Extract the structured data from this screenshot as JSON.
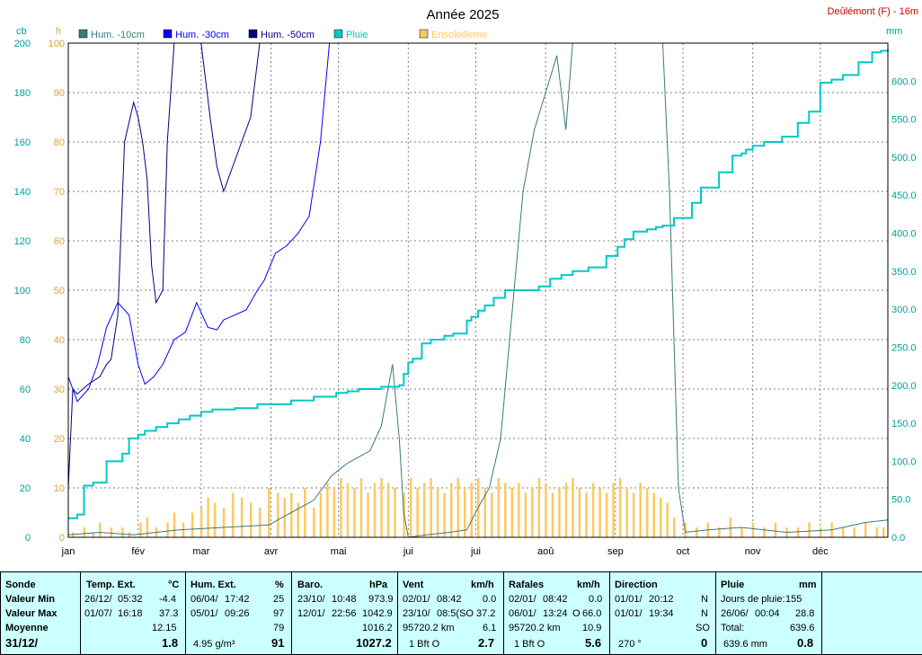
{
  "chart_data": {
    "type": "line",
    "title": "Année 2025",
    "station": "Deûlémont (F) - 16m",
    "left_unit_outer": "cb",
    "left_unit_inner": "h",
    "right_unit": "mm",
    "ylim_cb": [
      0,
      200
    ],
    "yticks_cb": [
      "0",
      "20",
      "40",
      "60",
      "80",
      "100",
      "120",
      "140",
      "160",
      "180",
      "200"
    ],
    "ylim_h": [
      0,
      100
    ],
    "yticks_h": [
      "0",
      "10",
      "20",
      "30",
      "40",
      "50",
      "60",
      "70",
      "80",
      "90",
      "100"
    ],
    "ylim_mm": [
      0,
      650
    ],
    "yticks_mm": [
      "0.0",
      "50.0",
      "100.0",
      "150.0",
      "200.0",
      "250.0",
      "300.0",
      "350.0",
      "400.0",
      "450.0",
      "500.0",
      "550.0",
      "600.0"
    ],
    "x_domain_days": [
      1,
      365
    ],
    "x_labels": [
      {
        "label": "jan",
        "day": 1
      },
      {
        "label": "fév",
        "day": 32
      },
      {
        "label": "mar",
        "day": 60
      },
      {
        "label": "avr",
        "day": 91
      },
      {
        "label": "mai",
        "day": 121
      },
      {
        "label": "jui",
        "day": 152
      },
      {
        "label": "jui",
        "day": 182
      },
      {
        "label": "aoû",
        "day": 213
      },
      {
        "label": "sep",
        "day": 244
      },
      {
        "label": "oct",
        "day": 274
      },
      {
        "label": "nov",
        "day": 305
      },
      {
        "label": "déc",
        "day": 335
      }
    ],
    "grid": true,
    "legend_position": "top",
    "series": [
      {
        "name": "Hum. -10cm",
        "color": "#3a7a78",
        "axis": "cb",
        "x": [
          1,
          15,
          30,
          50,
          70,
          90,
          100,
          110,
          118,
          125,
          135,
          140,
          142,
          145,
          148,
          150,
          152,
          160,
          170,
          178,
          183,
          188,
          193,
          198,
          203,
          208,
          213,
          218,
          222,
          225,
          228,
          230,
          234,
          238,
          245,
          255,
          258,
          262,
          265,
          268,
          272,
          275,
          285,
          300,
          320,
          340,
          355,
          365
        ],
        "y": [
          1,
          2,
          1,
          3,
          4,
          5,
          10,
          15,
          25,
          30,
          35,
          45,
          55,
          70,
          40,
          10,
          0,
          1,
          2,
          3,
          12,
          20,
          40,
          90,
          140,
          165,
          180,
          195,
          165,
          200,
          205,
          205,
          205,
          205,
          205,
          205,
          205,
          205,
          205,
          140,
          20,
          2,
          3,
          4,
          2,
          3,
          6,
          7
        ]
      },
      {
        "name": "Hum. -30cm",
        "color": "#0000ff",
        "axis": "cb",
        "x": [
          1,
          5,
          10,
          14,
          18,
          23,
          28,
          32,
          35,
          39,
          43,
          48,
          53,
          58,
          63,
          67,
          70,
          75,
          80,
          85,
          88,
          93,
          98,
          103,
          108,
          113,
          117,
          121,
          128,
          131,
          133,
          135,
          140,
          145,
          149,
          151,
          154,
          157,
          160,
          163,
          166,
          171,
          174,
          176,
          178,
          181,
          184,
          186,
          189,
          193,
          197,
          201,
          205,
          208,
          212,
          217,
          221,
          225,
          229,
          233,
          238,
          243,
          247,
          251,
          253,
          256,
          259,
          261,
          264,
          267,
          270,
          272,
          275,
          277,
          280,
          283,
          286,
          288,
          291,
          294,
          297,
          300,
          303,
          306,
          309,
          312,
          315,
          318,
          321,
          324,
          327,
          330,
          333,
          336,
          339,
          342,
          345,
          348,
          351,
          354,
          357,
          360,
          363,
          365
        ],
        "y": [
          65,
          55,
          60,
          70,
          85,
          95,
          90,
          70,
          62,
          65,
          70,
          80,
          83,
          95,
          85,
          84,
          88,
          90,
          92,
          100,
          104,
          115,
          118,
          123,
          130,
          160,
          205,
          205,
          205,
          205,
          205,
          205,
          205,
          205,
          205,
          205,
          205,
          205,
          205,
          205,
          205,
          205,
          205,
          205,
          205,
          205,
          205,
          205,
          205,
          205,
          205,
          205,
          205,
          205,
          205,
          205,
          205,
          205,
          205,
          205,
          205,
          205,
          205,
          205,
          205,
          205,
          205,
          205,
          205,
          205,
          205,
          205,
          205,
          205,
          205,
          205,
          205,
          205,
          205,
          205,
          205,
          205,
          205,
          205,
          205,
          205,
          205,
          205,
          205,
          205,
          205,
          205,
          205,
          205,
          205,
          205,
          205,
          205,
          205,
          205,
          205,
          205,
          205,
          205
        ]
      },
      {
        "name": "Hum. -50cm",
        "color": "#000080",
        "axis": "cb",
        "x": [
          1,
          3,
          5,
          10,
          15,
          18,
          20,
          23,
          26,
          30,
          32,
          34,
          36,
          38,
          40,
          43,
          45,
          48,
          52,
          56,
          60,
          64,
          67,
          70,
          74,
          78,
          82,
          86,
          90,
          93,
          95,
          97,
          99,
          101,
          103,
          106,
          110,
          114,
          118,
          121,
          124,
          127,
          131,
          134,
          136,
          138,
          140,
          144,
          148,
          150,
          152,
          154,
          157,
          160,
          163,
          166,
          168,
          170,
          172,
          175,
          178,
          180,
          182,
          184,
          186,
          190,
          194,
          198,
          202,
          206,
          210,
          215,
          220,
          226,
          230,
          236,
          240,
          244,
          246,
          248,
          250,
          252,
          254,
          258,
          262,
          266,
          270,
          273,
          276,
          280,
          284,
          288,
          292,
          296,
          300,
          303,
          305,
          308,
          312,
          316,
          320,
          324,
          328,
          332,
          336,
          340,
          344,
          348,
          352,
          356,
          360,
          365
        ],
        "y": [
          20,
          60,
          58,
          62,
          65,
          70,
          72,
          90,
          160,
          176,
          170,
          160,
          145,
          110,
          95,
          100,
          160,
          200,
          200,
          200,
          200,
          170,
          150,
          140,
          150,
          160,
          170,
          200,
          200,
          200,
          200,
          200,
          200,
          200,
          200,
          200,
          200,
          200,
          200,
          200,
          200,
          200,
          200,
          200,
          200,
          200,
          200,
          200,
          200,
          200,
          200,
          200,
          200,
          200,
          200,
          200,
          200,
          200,
          200,
          200,
          200,
          200,
          200,
          200,
          200,
          200,
          200,
          200,
          200,
          200,
          200,
          200,
          200,
          200,
          200,
          200,
          200,
          200,
          200,
          200,
          200,
          200,
          200,
          200,
          200,
          200,
          200,
          200,
          200,
          200,
          200,
          200,
          200,
          200,
          200,
          200,
          200,
          200,
          200,
          200,
          200,
          200,
          200,
          200,
          200,
          200,
          200,
          200,
          200,
          200,
          200,
          200
        ]
      },
      {
        "name": "Pluie",
        "color": "#00c8c8",
        "axis": "mm",
        "step": true,
        "x": [
          1,
          5,
          8,
          12,
          18,
          25,
          28,
          32,
          35,
          40,
          45,
          50,
          55,
          60,
          65,
          75,
          85,
          100,
          110,
          120,
          125,
          130,
          140,
          148,
          150,
          152,
          154,
          158,
          162,
          168,
          172,
          178,
          180,
          183,
          186,
          190,
          195,
          200,
          210,
          215,
          220,
          225,
          232,
          240,
          245,
          248,
          252,
          258,
          262,
          265,
          270,
          278,
          282,
          290,
          296,
          300,
          302,
          305,
          310,
          318,
          325,
          330,
          335,
          340,
          345,
          352,
          358,
          362,
          365
        ],
        "y": [
          25,
          30,
          68,
          72,
          100,
          110,
          130,
          135,
          140,
          145,
          150,
          155,
          160,
          165,
          168,
          170,
          175,
          180,
          185,
          190,
          192,
          195,
          198,
          200,
          215,
          230,
          235,
          255,
          260,
          265,
          268,
          285,
          290,
          298,
          305,
          315,
          325,
          325,
          330,
          340,
          345,
          350,
          355,
          370,
          382,
          392,
          402,
          405,
          408,
          410,
          420,
          440,
          460,
          480,
          502,
          505,
          510,
          515,
          520,
          527,
          545,
          560,
          598,
          602,
          608,
          625,
          638,
          640,
          642
        ]
      },
      {
        "name": "Ensoleilleme",
        "color": "#ffc860",
        "axis": "h",
        "type": "bar",
        "x": [
          3,
          8,
          12,
          15,
          20,
          25,
          28,
          33,
          36,
          40,
          45,
          48,
          52,
          56,
          60,
          63,
          66,
          70,
          74,
          78,
          82,
          86,
          90,
          94,
          97,
          100,
          103,
          106,
          110,
          113,
          116,
          119,
          122,
          125,
          128,
          131,
          134,
          137,
          140,
          143,
          146,
          150,
          153,
          156,
          159,
          162,
          165,
          168,
          171,
          174,
          177,
          180,
          183,
          186,
          189,
          192,
          195,
          198,
          201,
          204,
          207,
          210,
          213,
          216,
          219,
          222,
          225,
          228,
          231,
          234,
          237,
          240,
          243,
          246,
          249,
          252,
          255,
          258,
          261,
          264,
          267,
          270,
          275,
          280,
          285,
          290,
          295,
          300,
          305,
          310,
          315,
          320,
          325,
          330,
          335,
          340,
          345,
          350,
          355,
          360,
          363
        ],
        "y": [
          1,
          2,
          1,
          3,
          2,
          2,
          1,
          3,
          4,
          2,
          3,
          5,
          3,
          5,
          6,
          8,
          7,
          6,
          9,
          8,
          7,
          6,
          10,
          9,
          8,
          9,
          7,
          10,
          6,
          9,
          11,
          10,
          12,
          11,
          10,
          12,
          9,
          11,
          12,
          11,
          10,
          9,
          12,
          10,
          11,
          12,
          10,
          9,
          11,
          12,
          10,
          11,
          12,
          10,
          9,
          12,
          11,
          10,
          11,
          9,
          10,
          12,
          11,
          9,
          10,
          11,
          12,
          10,
          9,
          11,
          10,
          9,
          11,
          12,
          10,
          9,
          11,
          10,
          9,
          8,
          7,
          4,
          3,
          2,
          3,
          2,
          4,
          2,
          3,
          2,
          3,
          2,
          2,
          3,
          2,
          3,
          2,
          2,
          3,
          2,
          2
        ]
      }
    ]
  },
  "table": {
    "headers": {
      "sonde": "Sonde",
      "temp": {
        "label": "Temp. Ext.",
        "unit": "°C"
      },
      "hum": {
        "label": "Hum. Ext.",
        "unit": "%"
      },
      "baro": {
        "label": "Baro.",
        "unit": "hPa"
      },
      "vent": {
        "label": "Vent",
        "unit": "km/h"
      },
      "rafales": {
        "label": "Rafales",
        "unit": "km/h"
      },
      "direction": {
        "label": "Direction"
      },
      "pluie": {
        "label": "Pluie",
        "unit": "mm"
      }
    },
    "row_labels": {
      "min": "Valeur Min",
      "max": "Valeur Max",
      "moy": "Moyenne",
      "date": "31/12/"
    },
    "temp": {
      "min_date": "26/12/",
      "min_time": "05:32",
      "min": "-4.4",
      "max_date": "01/07/",
      "max_time": "16:18",
      "max": "37.3",
      "moy": "12.15",
      "last": "1.8"
    },
    "hum": {
      "min_date": "06/04/",
      "min_time": "17:42",
      "min": "25",
      "max_date": "05/01/",
      "max_time": "09:26",
      "max": "97",
      "moy": "79",
      "abs": "4.95 g/m³",
      "last": "91"
    },
    "baro": {
      "min_date": "23/10/",
      "min_time": "10:48",
      "min": "973.9",
      "max_date": "12/01/",
      "max_time": "22:56",
      "max": "1042.9",
      "moy": "1016.2",
      "last": "1027.2"
    },
    "vent": {
      "min_date": "02/01/",
      "min_time": "08:42",
      "min": "0.0",
      "max_date": "23/10/",
      "max_time": "08:5(SO",
      "max": "37.2",
      "dist": "95720.2 km",
      "moy": "6.1",
      "bft": "1 Bft O",
      "last": "2.7"
    },
    "rafales": {
      "min_date": "02/01/",
      "min_time": "08:42",
      "min": "0.0",
      "max_date": "06/01/",
      "max_time": "13:24",
      "max_dir": "O",
      "max": "66.0",
      "dist": "95720.2 km",
      "moy": "10.9",
      "bft": "1 Bft O",
      "last": "5.6"
    },
    "direction": {
      "min_date": "01/01/",
      "min_time": "20:12",
      "min": "N",
      "max_date": "01/01/",
      "max_time": "19:34",
      "max": "N",
      "moy": "SO",
      "deg": "270 °",
      "last": "0"
    },
    "pluie": {
      "days_label": "Jours de pluie:",
      "days": "155",
      "max_date": "26/06/",
      "max_time": "00:04",
      "max": "28.8",
      "total_label": "Total:",
      "total": "639.6",
      "cum": "639.6 mm",
      "last": "0.8"
    }
  }
}
